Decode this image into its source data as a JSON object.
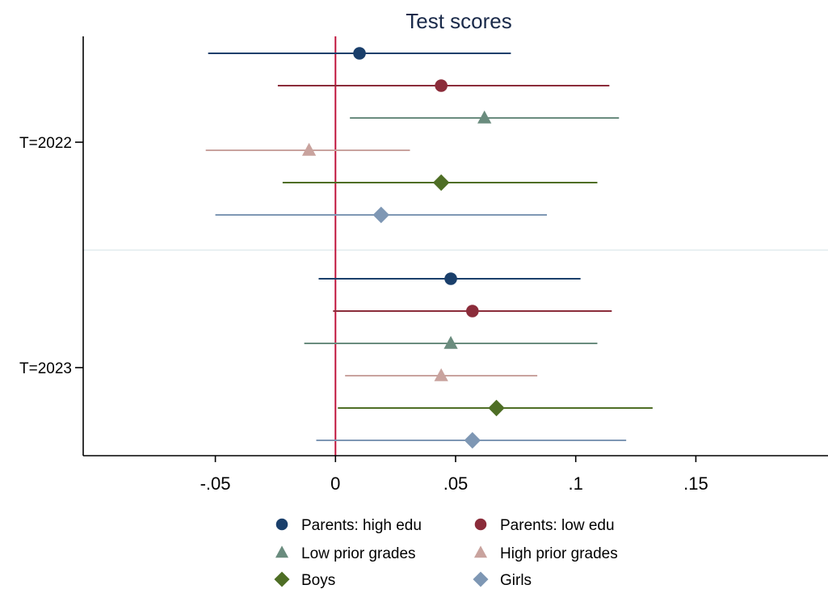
{
  "chart_data": {
    "type": "coefficient_plot",
    "title": "Test scores",
    "xlabel": "",
    "ylabel": "",
    "xlim": [
      -0.105,
      0.205
    ],
    "x_ticks": [
      -0.05,
      0,
      0.05,
      0.1,
      0.15
    ],
    "x_tick_labels": [
      "-.05",
      "0",
      ".05",
      ".1",
      ".15"
    ],
    "reference_line": {
      "x": 0,
      "color": "#c0143c"
    },
    "grid": false,
    "legend_position": "bottom",
    "groups": [
      {
        "label": "T=2022"
      },
      {
        "label": "T=2023"
      }
    ],
    "series": [
      {
        "name": "Parents: high edu",
        "marker": "circle",
        "color": "#1a3f6b",
        "points": [
          {
            "group": "T=2022",
            "estimate": 0.01,
            "ci_low": -0.053,
            "ci_high": 0.073
          },
          {
            "group": "T=2023",
            "estimate": 0.048,
            "ci_low": -0.007,
            "ci_high": 0.102
          }
        ]
      },
      {
        "name": "Parents: low edu",
        "marker": "circle",
        "color": "#8b2c3a",
        "points": [
          {
            "group": "T=2022",
            "estimate": 0.044,
            "ci_low": -0.024,
            "ci_high": 0.114
          },
          {
            "group": "T=2023",
            "estimate": 0.057,
            "ci_low": -0.001,
            "ci_high": 0.115
          }
        ]
      },
      {
        "name": "Low prior grades",
        "marker": "triangle",
        "color": "#6a8c7e",
        "points": [
          {
            "group": "T=2022",
            "estimate": 0.062,
            "ci_low": 0.006,
            "ci_high": 0.118
          },
          {
            "group": "T=2023",
            "estimate": 0.048,
            "ci_low": -0.013,
            "ci_high": 0.109
          }
        ]
      },
      {
        "name": "High prior grades",
        "marker": "triangle",
        "color": "#c9a39e",
        "points": [
          {
            "group": "T=2022",
            "estimate": -0.011,
            "ci_low": -0.054,
            "ci_high": 0.031
          },
          {
            "group": "T=2023",
            "estimate": 0.044,
            "ci_low": 0.004,
            "ci_high": 0.084
          }
        ]
      },
      {
        "name": "Boys",
        "marker": "diamond",
        "color": "#4e6e25",
        "points": [
          {
            "group": "T=2022",
            "estimate": 0.044,
            "ci_low": -0.022,
            "ci_high": 0.109
          },
          {
            "group": "T=2023",
            "estimate": 0.067,
            "ci_low": 0.001,
            "ci_high": 0.132
          }
        ]
      },
      {
        "name": "Girls",
        "marker": "diamond",
        "color": "#7e97b4",
        "points": [
          {
            "group": "T=2022",
            "estimate": 0.019,
            "ci_low": -0.05,
            "ci_high": 0.088
          },
          {
            "group": "T=2023",
            "estimate": 0.057,
            "ci_low": -0.008,
            "ci_high": 0.121
          }
        ]
      }
    ]
  }
}
